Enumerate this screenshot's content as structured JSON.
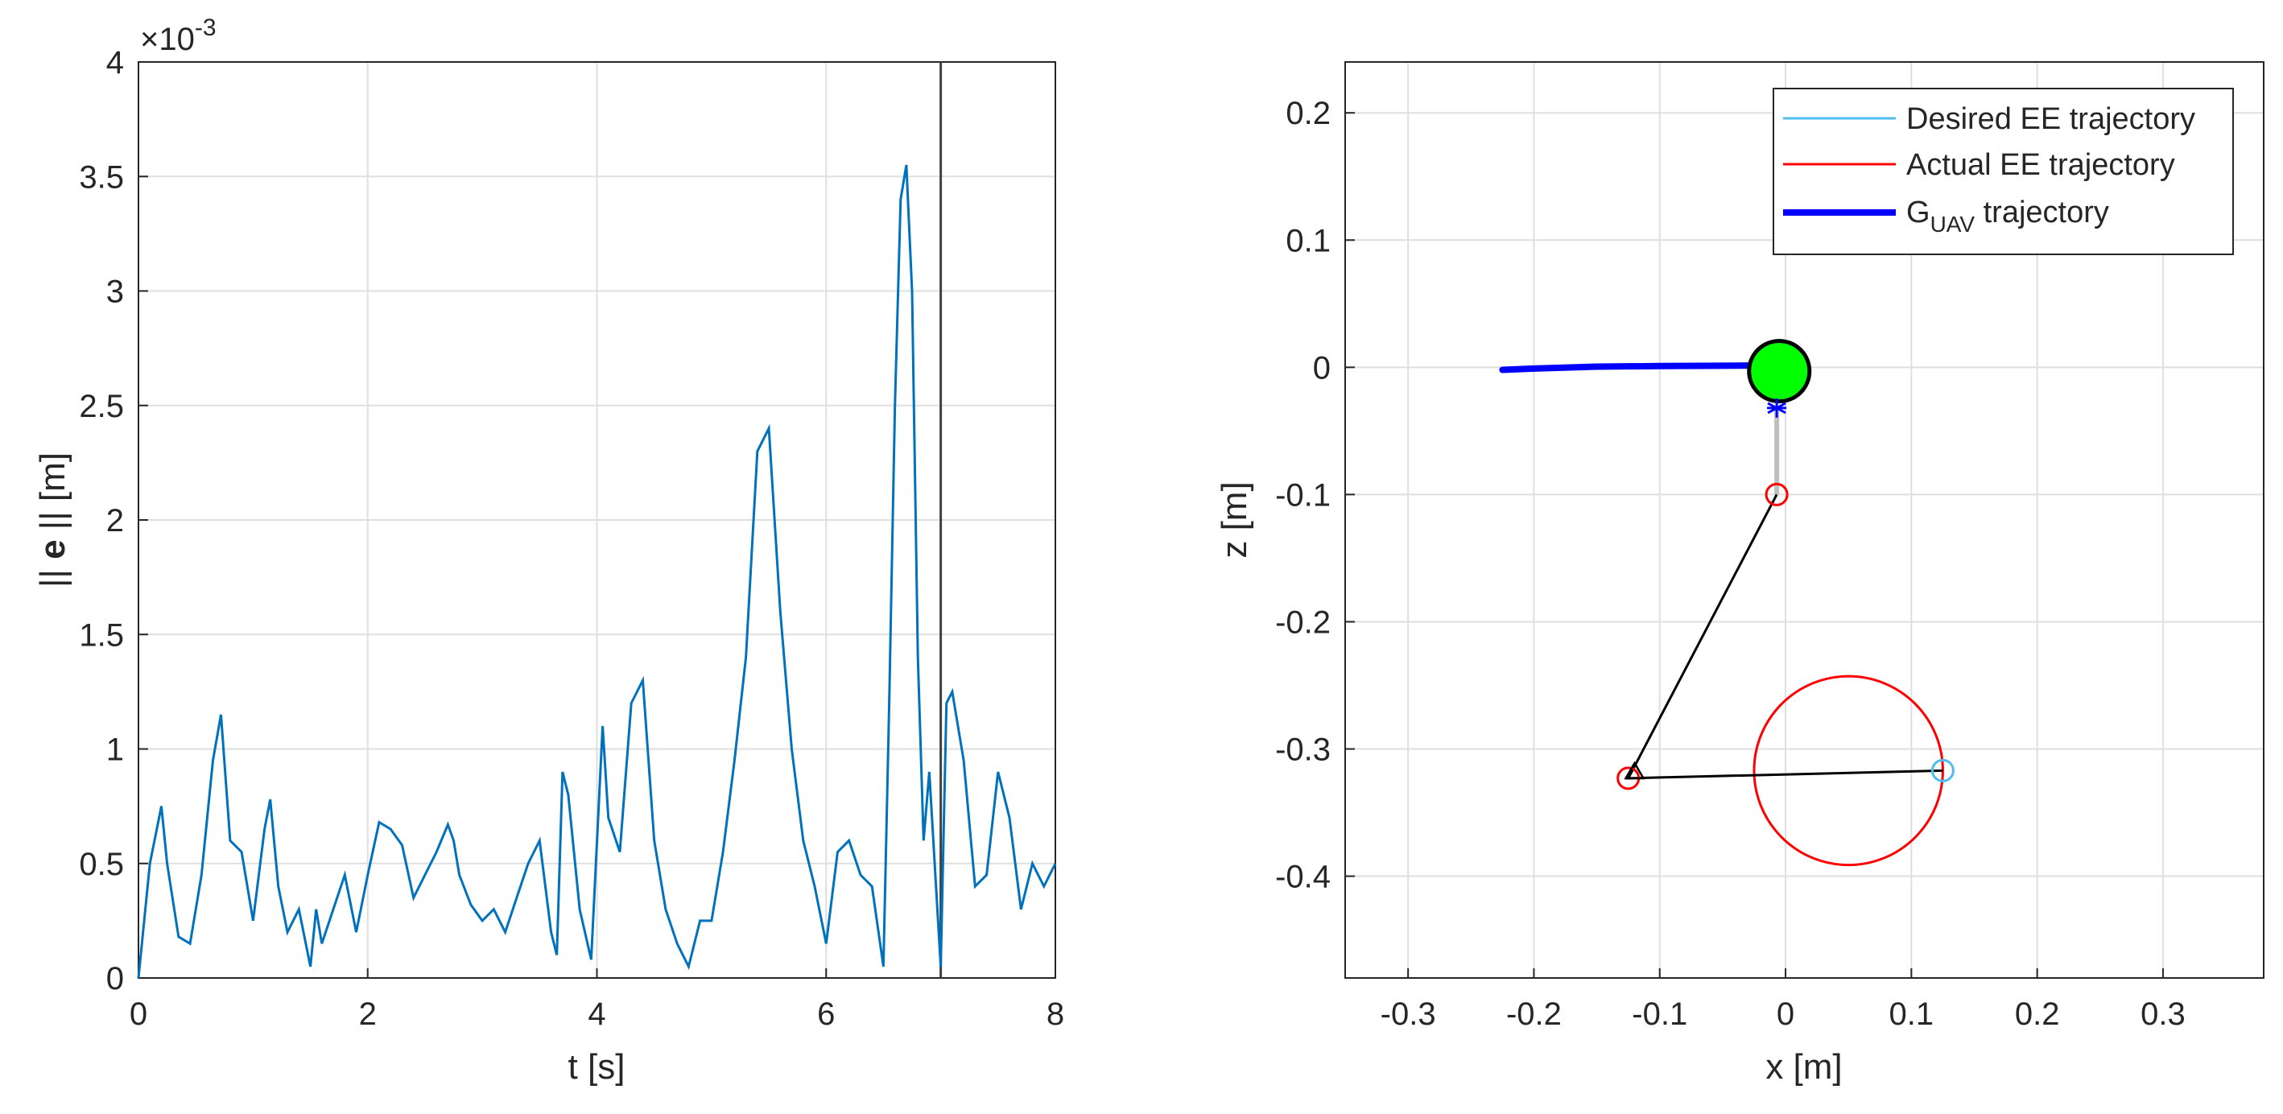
{
  "chart_data": [
    {
      "type": "line",
      "xlabel": "t [s]",
      "ylabel_prefix": "|| ",
      "ylabel_bold": "e",
      "ylabel_suffix": " || [m]",
      "y_exponent_label": "×10",
      "y_exponent": "-3",
      "xlim": [
        0,
        8
      ],
      "ylim": [
        0,
        0.004
      ],
      "xticks": [
        "0",
        "2",
        "4",
        "6",
        "8"
      ],
      "yticks": [
        "0",
        "0.5",
        "1",
        "1.5",
        "2",
        "2.5",
        "3",
        "3.5",
        "4"
      ],
      "grid": true,
      "line_color": "#0072bd",
      "marker_line": {
        "x": 7.0,
        "color": "#404040"
      },
      "series": [
        {
          "x": [
            0,
            0.1,
            0.2,
            0.25,
            0.35,
            0.45,
            0.55,
            0.65,
            0.72,
            0.8,
            0.9,
            1.0,
            1.1,
            1.15,
            1.22,
            1.3,
            1.4,
            1.5,
            1.55,
            1.6,
            1.7,
            1.8,
            1.9,
            2.0,
            2.1,
            2.2,
            2.3,
            2.4,
            2.5,
            2.6,
            2.7,
            2.75,
            2.8,
            2.9,
            3.0,
            3.1,
            3.2,
            3.3,
            3.4,
            3.5,
            3.6,
            3.65,
            3.7,
            3.75,
            3.85,
            3.95,
            4.05,
            4.1,
            4.2,
            4.3,
            4.4,
            4.5,
            4.6,
            4.7,
            4.8,
            4.9,
            5.0,
            5.1,
            5.2,
            5.3,
            5.4,
            5.5,
            5.55,
            5.6,
            5.7,
            5.8,
            5.9,
            6.0,
            6.1,
            6.2,
            6.3,
            6.4,
            6.5,
            6.55,
            6.6,
            6.65,
            6.7,
            6.75,
            6.8,
            6.85,
            6.9,
            7.0,
            7.05,
            7.1,
            7.2,
            7.3,
            7.4,
            7.5,
            7.6,
            7.7,
            7.8,
            7.9,
            8.0
          ],
          "y": [
            0.0,
            0.0005,
            0.00075,
            0.0005,
            0.00018,
            0.00015,
            0.00045,
            0.00095,
            0.00115,
            0.0006,
            0.00055,
            0.00025,
            0.00065,
            0.00078,
            0.0004,
            0.0002,
            0.0003,
            5e-05,
            0.0003,
            0.00015,
            0.0003,
            0.00045,
            0.0002,
            0.00045,
            0.00068,
            0.00065,
            0.00058,
            0.00035,
            0.00045,
            0.00055,
            0.00067,
            0.0006,
            0.00045,
            0.00032,
            0.00025,
            0.0003,
            0.0002,
            0.00035,
            0.0005,
            0.0006,
            0.0002,
            0.0001,
            0.0009,
            0.0008,
            0.0003,
            8e-05,
            0.0011,
            0.0007,
            0.00055,
            0.0012,
            0.0013,
            0.0006,
            0.0003,
            0.00015,
            5e-05,
            0.00025,
            0.00025,
            0.00055,
            0.00095,
            0.0014,
            0.0023,
            0.0024,
            0.002,
            0.0016,
            0.001,
            0.0006,
            0.0004,
            0.00015,
            0.00055,
            0.0006,
            0.00045,
            0.0004,
            5e-05,
            0.0012,
            0.0025,
            0.0034,
            0.00355,
            0.003,
            0.0014,
            0.0006,
            0.0009,
            5e-05,
            0.0012,
            0.00125,
            0.00095,
            0.0004,
            0.00045,
            0.0009,
            0.0007,
            0.0003,
            0.0005,
            0.0004,
            0.0005
          ]
        }
      ]
    },
    {
      "type": "line",
      "xlabel": "x [m]",
      "ylabel": "z [m]",
      "xlim": [
        -0.35,
        0.38
      ],
      "ylim": [
        -0.48,
        0.24
      ],
      "xticks": [
        "-0.3",
        "-0.2",
        "-0.1",
        "0",
        "0.1",
        "0.2",
        "0.3"
      ],
      "yticks": [
        "-0.4",
        "-0.3",
        "-0.2",
        "-0.1",
        "0",
        "0.1",
        "0.2"
      ],
      "grid": true,
      "legend_position": "top-right",
      "legend": [
        {
          "label": "Desired EE trajectory",
          "color": "#4dbeee",
          "style": "thin"
        },
        {
          "label": "Actual EE trajectory",
          "color": "#ff0000",
          "style": "thin"
        },
        {
          "label_main": "G",
          "label_sub": "UAV",
          "label_rest": " trajectory",
          "color": "#0000ff",
          "style": "thick"
        }
      ],
      "desired_circle": {
        "cx": 0.05,
        "cz": -0.317,
        "r": 0.075,
        "color": "#4dbeee"
      },
      "actual_circle": {
        "cx": 0.05,
        "cz": -0.317,
        "r": 0.075,
        "color": "#ff0000"
      },
      "uav_trajectory": {
        "color": "#0000ff",
        "x": [
          -0.225,
          -0.2,
          -0.15,
          -0.1,
          -0.05,
          -0.02,
          0.0
        ],
        "z": [
          -0.002,
          -0.001,
          0.0005,
          0.001,
          0.0012,
          0.0015,
          0.001
        ]
      },
      "uav_body": {
        "cx": -0.005,
        "cz": -0.003,
        "r": 0.024,
        "fill": "#00ff00",
        "stroke": "#000000"
      },
      "uav_point": {
        "x": -0.007,
        "z": -0.032,
        "marker": "*",
        "color": "#0000ff"
      },
      "tether": {
        "x": [
          -0.007,
          -0.007
        ],
        "z": [
          -0.032,
          -0.1
        ],
        "color": "#bfbfbf"
      },
      "arm_links": {
        "color": "#000000",
        "x": [
          -0.007,
          -0.125,
          0.125
        ],
        "z": [
          -0.1,
          -0.323,
          -0.317
        ]
      },
      "joint_markers": [
        {
          "x": -0.007,
          "z": -0.1,
          "color": "#ff0000",
          "marker": "o"
        },
        {
          "x": -0.125,
          "z": -0.323,
          "color": "#ff0000",
          "marker": "o"
        },
        {
          "x": 0.125,
          "z": -0.317,
          "color": "#4dbeee",
          "marker": "o"
        }
      ],
      "base_marker": {
        "x": -0.12,
        "z": -0.318,
        "marker": "triangle",
        "color": "#000000"
      }
    }
  ]
}
